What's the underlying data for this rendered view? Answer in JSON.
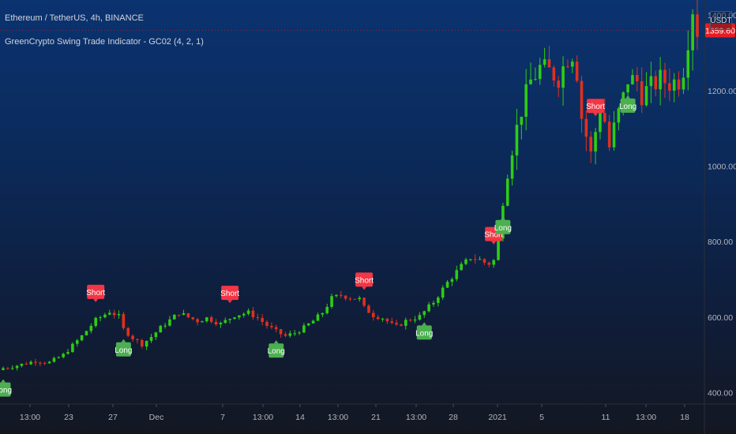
{
  "header": {
    "title": "Ethereum / TetherUS, 4h, BINANCE",
    "indicator": "GreenCrypto Swing Trade Indicator - GC02 (4, 2, 1)"
  },
  "price_axis": {
    "unit": "USDT",
    "current_price": "1359.60"
  },
  "colors": {
    "up": "#2ecc14",
    "down": "#e0301e",
    "short_label": "#f23645",
    "long_label": "#4caf50",
    "price_tag": "#e51c23"
  },
  "chart_data": {
    "type": "candlestick",
    "title": "Ethereum / TetherUS, 4h, BINANCE",
    "ylim": [
      370,
      1440
    ],
    "y_ticks": [
      400,
      600,
      800,
      1000,
      1200,
      1400
    ],
    "y_tick_labels": [
      "400.00",
      "600.00",
      "800.00",
      "1000.00",
      "1200.00",
      "1400.00"
    ],
    "x_tick_labels": [
      "13:00",
      "23",
      "27",
      "Dec",
      "7",
      "13:00",
      "14",
      "13:00",
      "21",
      "13:00",
      "28",
      "2021",
      "5",
      "11",
      "13:00",
      "18"
    ],
    "price_path": [
      [
        0,
        465
      ],
      [
        3,
        472
      ],
      [
        7,
        484
      ],
      [
        10,
        480
      ],
      [
        13,
        500
      ],
      [
        17,
        550
      ],
      [
        20,
        592
      ],
      [
        23,
        615
      ],
      [
        25,
        602
      ],
      [
        26,
        568
      ],
      [
        28,
        545
      ],
      [
        30,
        528
      ],
      [
        32,
        548
      ],
      [
        34,
        572
      ],
      [
        36,
        592
      ],
      [
        38,
        612
      ],
      [
        40,
        600
      ],
      [
        42,
        590
      ],
      [
        44,
        598
      ],
      [
        47,
        582
      ],
      [
        50,
        605
      ],
      [
        53,
        612
      ],
      [
        55,
        598
      ],
      [
        57,
        578
      ],
      [
        59,
        562
      ],
      [
        61,
        550
      ],
      [
        63,
        558
      ],
      [
        65,
        572
      ],
      [
        67,
        590
      ],
      [
        69,
        612
      ],
      [
        71,
        650
      ],
      [
        73,
        658
      ],
      [
        75,
        652
      ],
      [
        77,
        648
      ],
      [
        78,
        625
      ],
      [
        80,
        605
      ],
      [
        82,
        598
      ],
      [
        84,
        580
      ],
      [
        85,
        575
      ],
      [
        87,
        590
      ],
      [
        90,
        602
      ],
      [
        93,
        640
      ],
      [
        96,
        692
      ],
      [
        99,
        735
      ],
      [
        101,
        758
      ],
      [
        103,
        752
      ],
      [
        104,
        745
      ],
      [
        105,
        742
      ],
      [
        106,
        750
      ],
      [
        107,
        805
      ],
      [
        108,
        905
      ],
      [
        110,
        1050
      ],
      [
        112,
        1150
      ],
      [
        114,
        1225
      ],
      [
        116,
        1260
      ],
      [
        118,
        1250
      ],
      [
        120,
        1235
      ],
      [
        122,
        1290
      ],
      [
        123,
        1300
      ],
      [
        124,
        1250
      ],
      [
        125,
        1130
      ],
      [
        126,
        1080
      ],
      [
        127,
        1030
      ],
      [
        129,
        1155
      ],
      [
        130,
        1120
      ],
      [
        131,
        1050
      ],
      [
        132,
        1100
      ],
      [
        134,
        1180
      ],
      [
        135,
        1230
      ],
      [
        137,
        1225
      ],
      [
        138,
        1190
      ],
      [
        140,
        1210
      ],
      [
        142,
        1230
      ],
      [
        144,
        1220
      ],
      [
        146,
        1228
      ],
      [
        147,
        1260
      ],
      [
        148,
        1340
      ],
      [
        149,
        1420
      ],
      [
        150,
        1360
      ]
    ],
    "signals": [
      {
        "label": "Long",
        "type": "long",
        "x": 0
      },
      {
        "label": "Short",
        "type": "short",
        "x": 20
      },
      {
        "label": "Long",
        "type": "long",
        "x": 26
      },
      {
        "label": "Short",
        "type": "short",
        "x": 49
      },
      {
        "label": "Long",
        "type": "long",
        "x": 59
      },
      {
        "label": "Short",
        "type": "short",
        "x": 78
      },
      {
        "label": "Long",
        "type": "long",
        "x": 91
      },
      {
        "label": "Short",
        "type": "short",
        "x": 106
      },
      {
        "label": "Long",
        "type": "long",
        "x": 108
      },
      {
        "label": "Short",
        "type": "short",
        "x": 128
      },
      {
        "label": "Long",
        "type": "long",
        "x": 135
      }
    ]
  }
}
